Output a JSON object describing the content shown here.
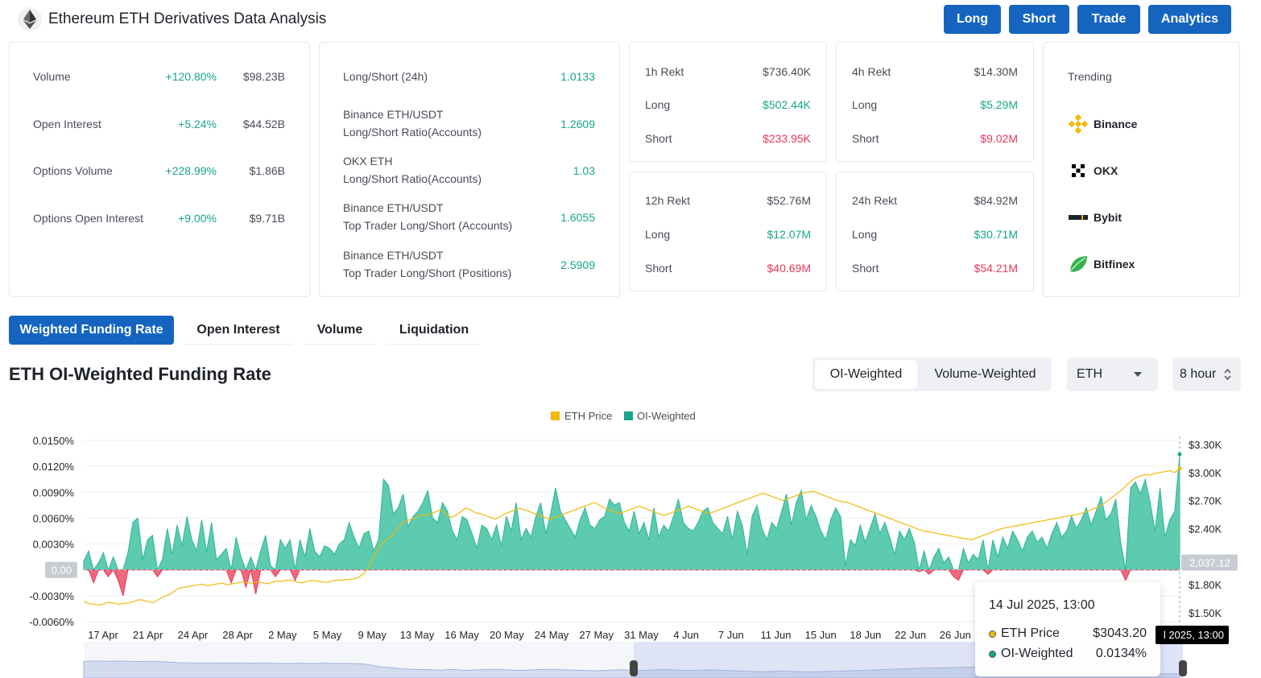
{
  "header": {
    "title": "Ethereum ETH Derivatives Data Analysis",
    "buttons": [
      "Long",
      "Short",
      "Trade",
      "Analytics"
    ]
  },
  "stats": [
    {
      "label": "Volume",
      "change": "+120.80%",
      "value": "$98.23B"
    },
    {
      "label": "Open Interest",
      "change": "+5.24%",
      "value": "$44.52B"
    },
    {
      "label": "Options Volume",
      "change": "+228.99%",
      "value": "$1.86B"
    },
    {
      "label": "Options Open Interest",
      "change": "+9.00%",
      "value": "$9.71B"
    }
  ],
  "ratios": [
    {
      "line1": "Long/Short (24h)",
      "line2": "",
      "value": "1.0133"
    },
    {
      "line1": "Binance ETH/USDT",
      "line2": "Long/Short Ratio(Accounts)",
      "value": "1.2609"
    },
    {
      "line1": "OKX ETH",
      "line2": "Long/Short Ratio(Accounts)",
      "value": "1.03"
    },
    {
      "line1": "Binance ETH/USDT",
      "line2": "Top Trader Long/Short (Accounts)",
      "value": "1.6055"
    },
    {
      "line1": "Binance ETH/USDT",
      "line2": "Top Trader Long/Short (Positions)",
      "value": "2.5909"
    }
  ],
  "rekt": [
    {
      "title": "1h Rekt",
      "total": "$736.40K",
      "long_label": "Long",
      "long": "$502.44K",
      "short_label": "Short",
      "short": "$233.95K"
    },
    {
      "title": "4h Rekt",
      "total": "$14.30M",
      "long_label": "Long",
      "long": "$5.29M",
      "short_label": "Short",
      "short": "$9.02M"
    },
    {
      "title": "12h Rekt",
      "total": "$52.76M",
      "long_label": "Long",
      "long": "$12.07M",
      "short_label": "Short",
      "short": "$40.69M"
    },
    {
      "title": "24h Rekt",
      "total": "$84.92M",
      "long_label": "Long",
      "long": "$30.71M",
      "short_label": "Short",
      "short": "$54.21M"
    }
  ],
  "trending": {
    "title": "Trending",
    "items": [
      "Binance",
      "OKX",
      "Bybit",
      "Bitfinex"
    ]
  },
  "tabs": [
    "Weighted Funding Rate",
    "Open Interest",
    "Volume",
    "Liquidation"
  ],
  "chart_section": {
    "title": "ETH OI-Weighted Funding Rate",
    "weight_options": [
      "OI-Weighted",
      "Volume-Weighted"
    ],
    "coin": "ETH",
    "interval": "8 hour"
  },
  "tooltip": {
    "date": "14 Jul 2025, 13:00",
    "rows": [
      {
        "name": "ETH Price",
        "value": "$3043.20",
        "color": "#f0b90b"
      },
      {
        "name": "OI-Weighted",
        "value": "0.0134%",
        "color": "#17a589"
      }
    ],
    "cross_label": "l 2025, 13:00"
  },
  "colors": {
    "accent": "#1565c0",
    "green": "#17a589",
    "red": "#e53958",
    "price": "#f0b90b",
    "area": "#5ccbb0",
    "negative": "#f0677c"
  },
  "chart_data": {
    "type": "area",
    "legend": [
      "ETH Price",
      "OI-Weighted"
    ],
    "legend_position": "top-center",
    "x_ticks": [
      "17 Apr",
      "21 Apr",
      "24 Apr",
      "28 Apr",
      "2 May",
      "5 May",
      "9 May",
      "13 May",
      "16 May",
      "20 May",
      "24 May",
      "27 May",
      "31 May",
      "4 Jun",
      "7 Jun",
      "11 Jun",
      "15 Jun",
      "18 Jun",
      "22 Jun",
      "26 Jun"
    ],
    "y_left_ticks": [
      "0.0150%",
      "0.0120%",
      "0.0090%",
      "0.0060%",
      "0.0030%",
      "0.00",
      "-0.0030%",
      "-0.0060%"
    ],
    "y_left_range": [
      -0.006,
      0.015
    ],
    "y_right_ticks": [
      "$3.30K",
      "$3.00K",
      "$2.70K",
      "$2.40K",
      "2,037.12",
      "$1.80K",
      "$1.50K"
    ],
    "y_right_range": [
      1500,
      3300
    ],
    "funding_rate": [
      0.001,
      0.0022,
      -0.0015,
      0.0008,
      0.002,
      -0.0008,
      0.0015,
      -0.0012,
      -0.003,
      0.002,
      0.0055,
      0.006,
      0.0012,
      0.0035,
      0.004,
      -0.0008,
      0.0012,
      0.0048,
      0.0018,
      0.0052,
      0.0028,
      0.0062,
      0.0035,
      0.0022,
      0.0058,
      0.0021,
      0.0055,
      0.0012,
      0.0018,
      0.0025,
      -0.0015,
      0.0038,
      0.0015,
      -0.002,
      0.0015,
      -0.0028,
      0.0022,
      0.004,
      0.0005,
      -0.0008,
      0.0035,
      0.0025,
      0.0035,
      -0.0012,
      0.0035,
      0.0015,
      0.0048,
      0.0022,
      0.0015,
      0.0028,
      0.0025,
      0.0018,
      0.003,
      0.0035,
      0.0055,
      0.0038,
      0.0025,
      0.0042,
      0.0045,
      0.0022,
      0.0035,
      0.0105,
      0.0098,
      0.0065,
      0.0072,
      0.0088,
      0.005,
      0.0062,
      0.0068,
      0.0078,
      0.0092,
      0.006,
      0.0055,
      0.0078,
      0.0068,
      0.0045,
      0.0035,
      0.0062,
      0.0058,
      0.0042,
      0.0025,
      0.0052,
      0.0048,
      0.0035,
      0.0052,
      0.0028,
      0.0062,
      0.0045,
      0.0078,
      0.0035,
      0.0048,
      0.0038,
      0.0062,
      0.0078,
      0.0042,
      0.0065,
      0.0095,
      0.0068,
      0.0058,
      0.0048,
      0.0038,
      0.0058,
      0.0072,
      0.0052,
      0.0048,
      0.0058,
      0.0062,
      0.0082,
      0.0075,
      0.0078,
      0.0055,
      0.0045,
      0.0068,
      0.0042,
      0.0055,
      0.0035,
      0.0072,
      0.0038,
      0.0052,
      0.0045,
      0.0062,
      0.0082,
      0.0055,
      0.0048,
      0.0045,
      0.0055,
      0.0068,
      0.0072,
      0.0055,
      0.0048,
      0.0042,
      0.0062,
      0.0035,
      0.0068,
      0.0052,
      0.0018,
      0.0062,
      0.0075,
      0.0048,
      0.0035,
      0.0055,
      0.0048,
      0.0068,
      0.0088,
      0.0052,
      0.0078,
      0.0092,
      0.0058,
      0.0075,
      0.0062,
      0.0045,
      0.0035,
      0.0058,
      0.0072,
      0.0062,
      0.0005,
      0.0035,
      0.0028,
      0.0052,
      0.0032,
      0.0048,
      0.0065,
      0.0042,
      0.0055,
      0.0038,
      0.0018,
      0.0045,
      0.0035,
      0.0048,
      0.0032,
      -0.0002,
      0.0022,
      -0.0005,
      0.0015,
      0.0025,
      0.0008,
      0.0015,
      -0.0008,
      -0.0012,
      0.0025,
      0.0008,
      0.0018,
      0.0012,
      0.0035,
      -0.0005,
      0.0035,
      0.0015,
      0.0038,
      0.0025,
      0.0045,
      0.0035,
      0.0022,
      0.0038,
      0.0045,
      0.0032,
      0.0038,
      0.0025,
      0.0042,
      0.0055,
      0.0038,
      0.0045,
      0.0062,
      0.0048,
      0.0058,
      0.0072,
      0.0052,
      0.0068,
      0.0085,
      0.0058,
      0.0065,
      0.0082,
      0.0032,
      -0.0012,
      0.0095,
      0.0102,
      0.0088,
      0.0105,
      0.0078,
      0.0045,
      0.0095,
      0.0038,
      0.0058,
      0.0068,
      0.0134
    ],
    "eth_price": [
      1620,
      1600,
      1590,
      1585,
      1595,
      1610,
      1605,
      1590,
      1600,
      1605,
      1620,
      1640,
      1635,
      1620,
      1610,
      1640,
      1670,
      1690,
      1720,
      1760,
      1770,
      1780,
      1790,
      1800,
      1805,
      1790,
      1800,
      1810,
      1815,
      1800,
      1810,
      1820,
      1830,
      1825,
      1815,
      1830,
      1820,
      1810,
      1825,
      1840,
      1835,
      1850,
      1845,
      1830,
      1820,
      1835,
      1845,
      1840,
      1830,
      1825,
      1840,
      1850,
      1845,
      1855,
      1860,
      1870,
      1900,
      1950,
      2050,
      2150,
      2230,
      2280,
      2320,
      2380,
      2450,
      2480,
      2500,
      2520,
      2550,
      2540,
      2560,
      2580,
      2600,
      2560,
      2520,
      2540,
      2580,
      2620,
      2600,
      2570,
      2560,
      2540,
      2520,
      2500,
      2530,
      2560,
      2580,
      2600,
      2620,
      2600,
      2580,
      2560,
      2540,
      2520,
      2500,
      2520,
      2540,
      2560,
      2580,
      2600,
      2620,
      2640,
      2660,
      2680,
      2650,
      2620,
      2600,
      2580,
      2560,
      2580,
      2600,
      2620,
      2640,
      2620,
      2600,
      2580,
      2560,
      2540,
      2560,
      2580,
      2600,
      2620,
      2640,
      2620,
      2600,
      2580,
      2560,
      2580,
      2600,
      2620,
      2640,
      2660,
      2680,
      2700,
      2720,
      2740,
      2760,
      2780,
      2760,
      2740,
      2720,
      2700,
      2720,
      2740,
      2760,
      2780,
      2790,
      2800,
      2780,
      2760,
      2740,
      2720,
      2700,
      2690,
      2680,
      2660,
      2640,
      2620,
      2600,
      2580,
      2560,
      2540,
      2520,
      2500,
      2480,
      2460,
      2440,
      2420,
      2400,
      2380,
      2370,
      2360,
      2350,
      2340,
      2330,
      2320,
      2310,
      2300,
      2290,
      2280,
      2300,
      2320,
      2340,
      2360,
      2380,
      2400,
      2410,
      2420,
      2430,
      2440,
      2450,
      2460,
      2470,
      2480,
      2490,
      2500,
      2510,
      2520,
      2530,
      2540,
      2550,
      2560,
      2580,
      2600,
      2620,
      2640,
      2680,
      2720,
      2760,
      2800,
      2850,
      2900,
      2940,
      2960,
      2980,
      2970,
      2990,
      3000,
      3010,
      3020,
      3000,
      3043.2
    ]
  }
}
